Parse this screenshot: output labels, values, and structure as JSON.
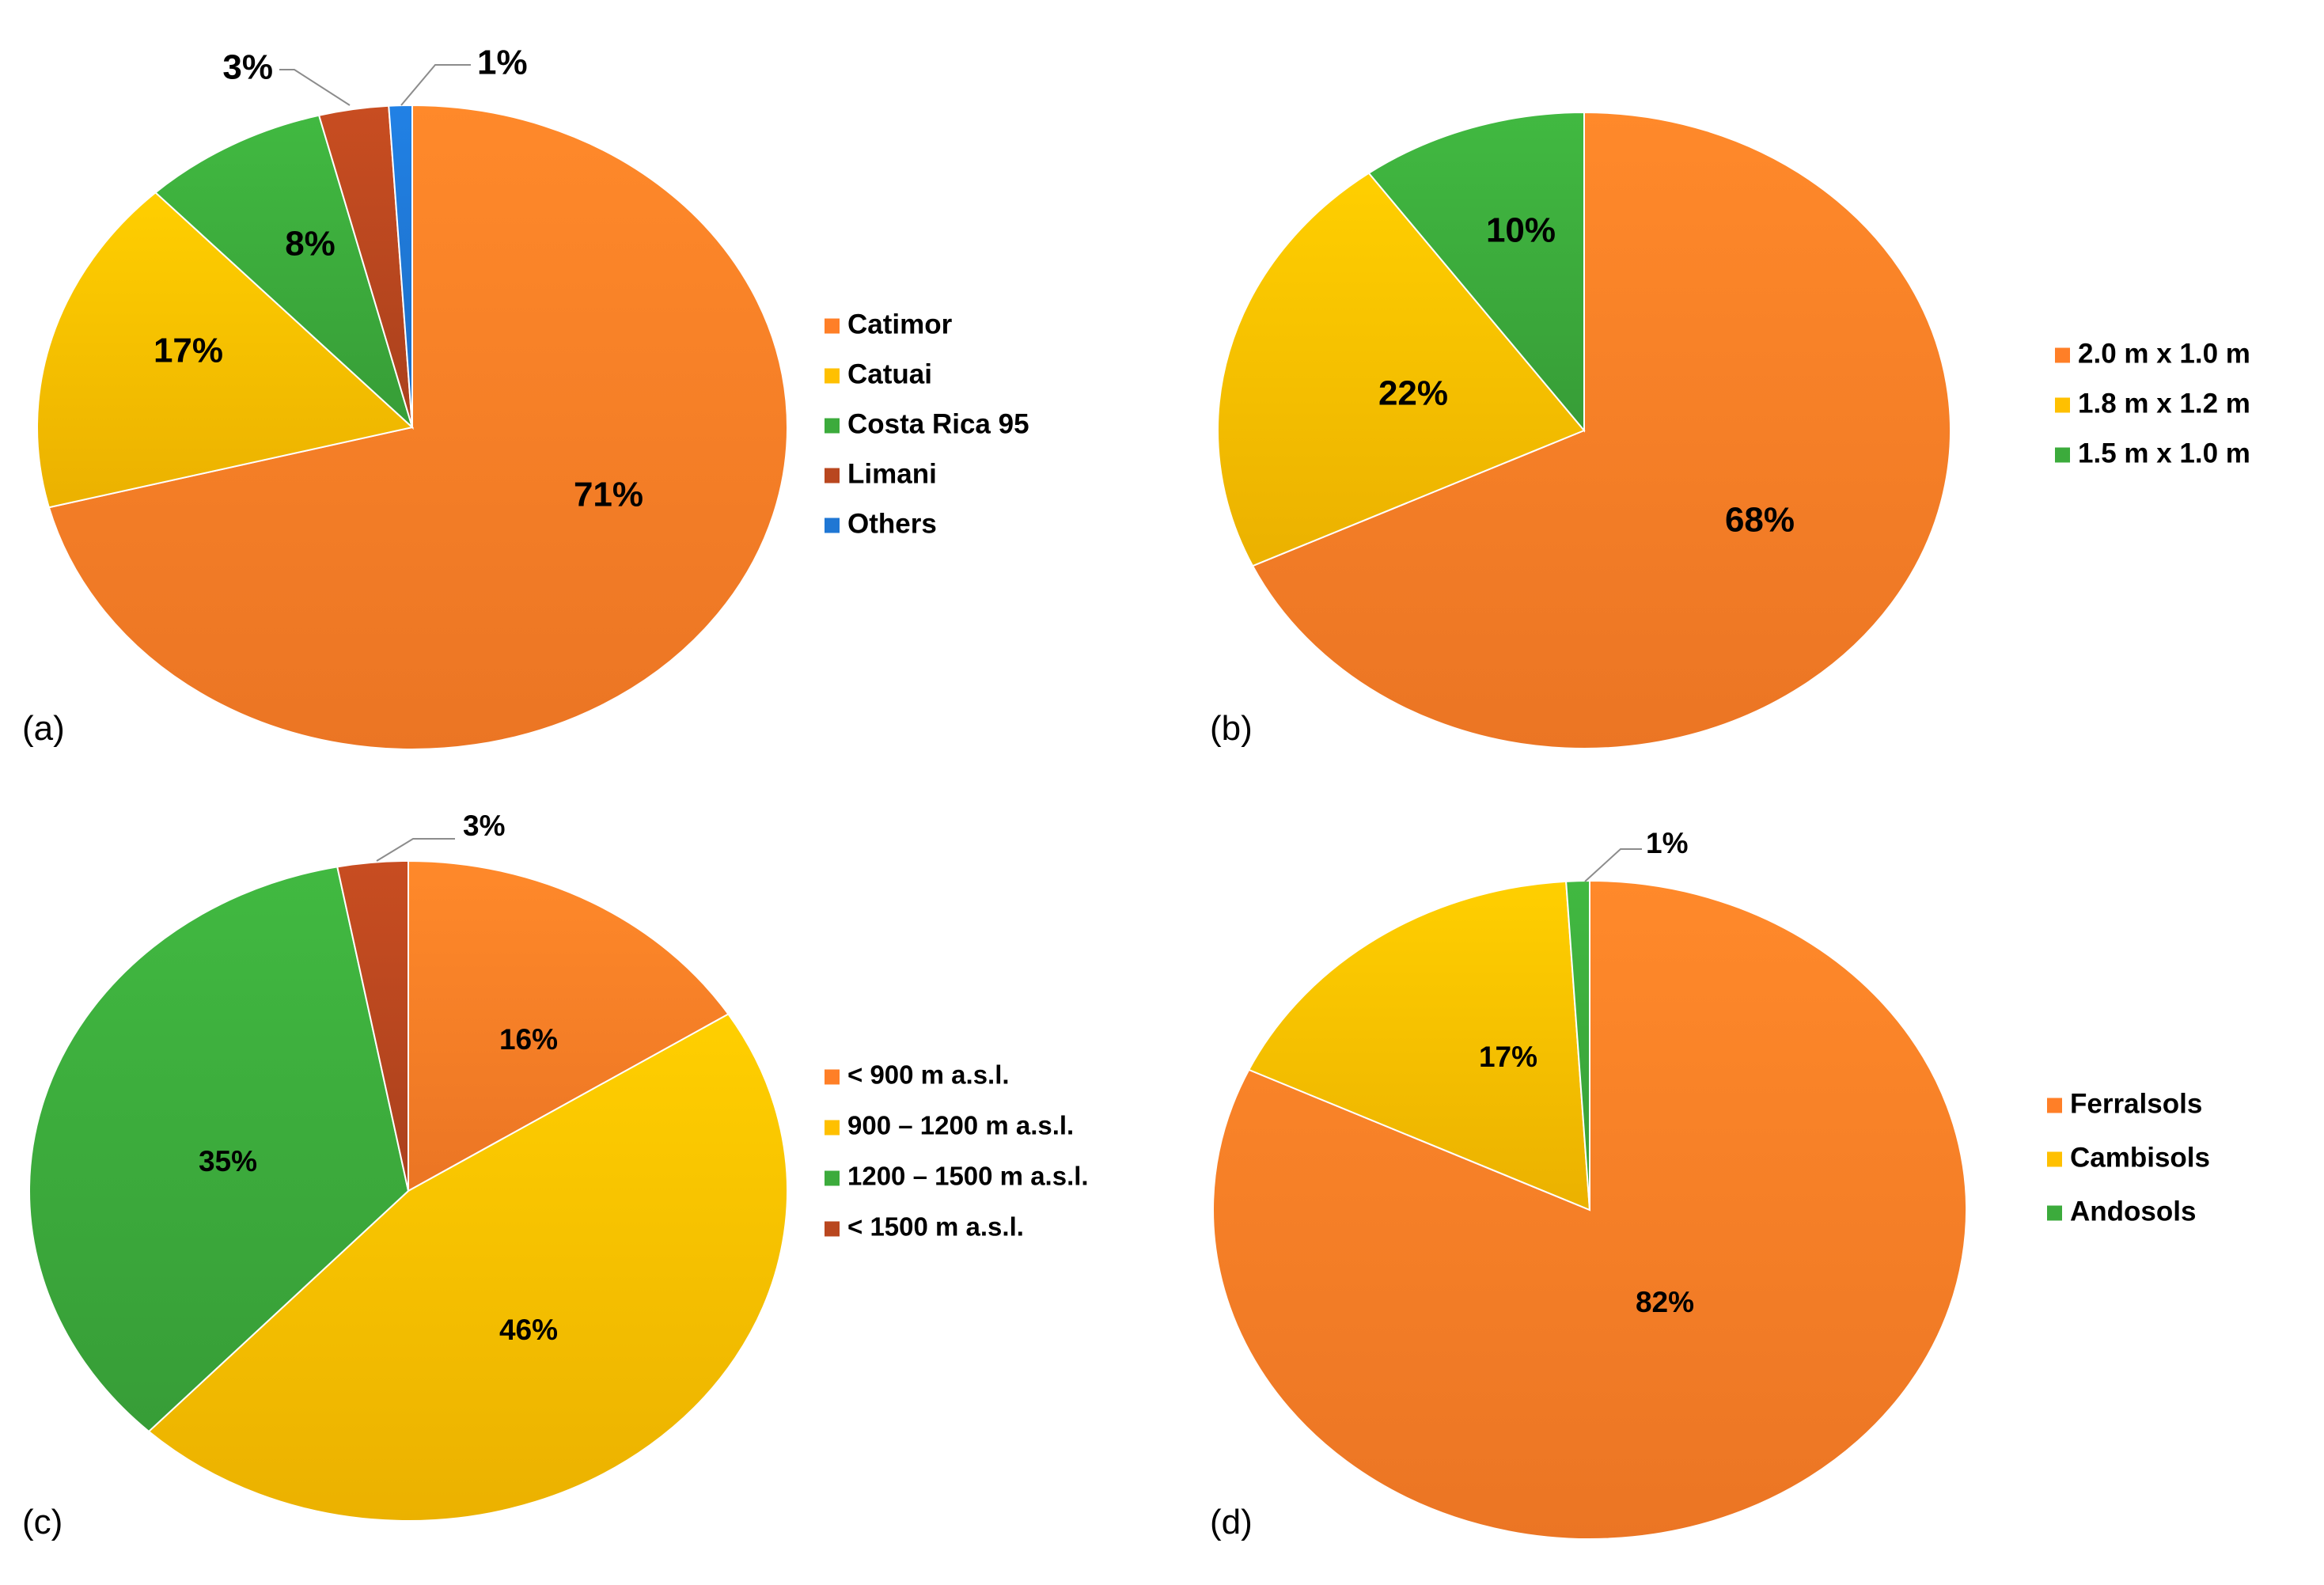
{
  "chart_data": [
    {
      "type": "pie",
      "panel_label": "(a)",
      "categories": [
        "Catimor",
        "Catuai",
        "Costa Rica 95",
        "Limani",
        "Others"
      ],
      "values": [
        71,
        17,
        8,
        3,
        1
      ],
      "labels": [
        "71%",
        "17%",
        "8%",
        "3%",
        "1%"
      ],
      "colors": [
        "#ff7f27",
        "#ffc000",
        "#3cab3c",
        "#b9471f",
        "#1f77d4"
      ],
      "legend_position": "right"
    },
    {
      "type": "pie",
      "panel_label": "(b)",
      "categories": [
        "2.0 m x 1.0 m",
        "1.8 m x 1.2 m",
        "1.5 m x 1.0 m"
      ],
      "values": [
        68,
        22,
        10
      ],
      "labels": [
        "68%",
        "22%",
        "10%"
      ],
      "colors": [
        "#ff7f27",
        "#ffc000",
        "#3cab3c"
      ],
      "legend_position": "right"
    },
    {
      "type": "pie",
      "panel_label": "(c)",
      "categories": [
        "< 900 m a.s.l.",
        "900 – 1200 m a.s.l.",
        "1200 – 1500 m a.s.l.",
        "< 1500 m a.s.l."
      ],
      "values": [
        16,
        46,
        35,
        3
      ],
      "labels": [
        "16%",
        "46%",
        "35%",
        "3%"
      ],
      "colors": [
        "#ff7f27",
        "#ffc000",
        "#3cab3c",
        "#b9471f"
      ],
      "legend_position": "right"
    },
    {
      "type": "pie",
      "panel_label": "(d)",
      "categories": [
        "Ferralsols",
        "Cambisols",
        "Andosols"
      ],
      "values": [
        82,
        17,
        1
      ],
      "labels": [
        "82%",
        "17%",
        "1%"
      ],
      "colors": [
        "#ff7f27",
        "#ffc000",
        "#3cab3c"
      ],
      "legend_position": "right"
    }
  ]
}
